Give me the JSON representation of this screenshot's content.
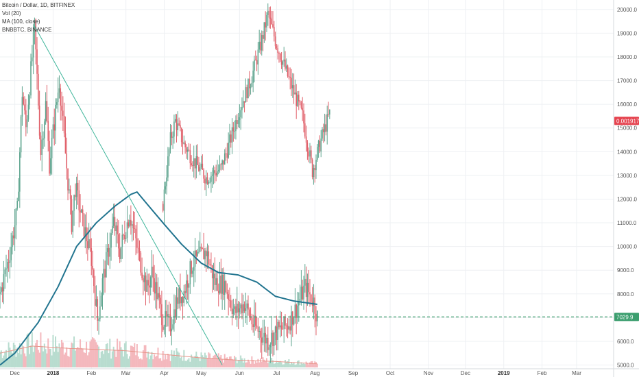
{
  "legend": {
    "main_series": "Bitcoin / Dollar, 1D, BITFINEX",
    "volume": "Vol (20)",
    "ma": "MA (100, close)",
    "overlay": "BNBBTC, BINANCE"
  },
  "price_tags": {
    "overlay_last": "0.0019173",
    "btc_last": "7029.9"
  },
  "colors": {
    "up": "#5fa58f",
    "down": "#e0606a",
    "ma": "#21748f",
    "trendline": "#3eb59a",
    "overlay_tag": "#e5434f",
    "btc_tag": "#3b9e6e",
    "volume_up": "#b8dccf",
    "volume_down": "#f4b8bd",
    "volume_ma": "#e8958a",
    "grid": "#eef0f3"
  },
  "chart_data": {
    "type": "candlestick",
    "title": "Bitcoin / Dollar, 1D, BITFINEX",
    "y_axis": {
      "range": [
        4900,
        20400
      ],
      "ticks": [
        "5000.0",
        "6000.0",
        "7000.0",
        "8000.0",
        "9000.0",
        "10000.0",
        "11000.0",
        "12000.0",
        "13000.0",
        "14000.0",
        "15000.0",
        "16000.0",
        "17000.0",
        "18000.0",
        "19000.0",
        "20000.0"
      ],
      "tick_values": [
        5000,
        6000,
        7000,
        8000,
        9000,
        10000,
        11000,
        12000,
        13000,
        14000,
        15000,
        16000,
        17000,
        18000,
        19000,
        20000
      ]
    },
    "x_axis": {
      "start": "2017-11-19",
      "end": "2019-03-31",
      "ticks": [
        {
          "date": "2017-12-01",
          "label": "Dec",
          "bold": false
        },
        {
          "date": "2018-01-01",
          "label": "2018",
          "bold": true
        },
        {
          "date": "2018-02-01",
          "label": "Feb",
          "bold": false
        },
        {
          "date": "2018-03-01",
          "label": "Mar",
          "bold": false
        },
        {
          "date": "2018-04-01",
          "label": "Apr",
          "bold": false
        },
        {
          "date": "2018-05-01",
          "label": "May",
          "bold": false
        },
        {
          "date": "2018-06-01",
          "label": "Jun",
          "bold": false
        },
        {
          "date": "2018-07-01",
          "label": "Jul",
          "bold": false
        },
        {
          "date": "2018-08-01",
          "label": "Aug",
          "bold": false
        },
        {
          "date": "2018-09-01",
          "label": "Sep",
          "bold": false
        },
        {
          "date": "2018-10-01",
          "label": "Oct",
          "bold": false
        },
        {
          "date": "2018-11-01",
          "label": "Nov",
          "bold": false
        },
        {
          "date": "2018-12-01",
          "label": "Dec",
          "bold": false
        },
        {
          "date": "2019-01-01",
          "label": "2019",
          "bold": true
        },
        {
          "date": "2019-02-01",
          "label": "Feb",
          "bold": false
        },
        {
          "date": "2019-03-01",
          "label": "Mar",
          "bold": false
        }
      ]
    },
    "btc_close_path": [
      [
        "2017-11-19",
        8000
      ],
      [
        "2017-11-26",
        9500
      ],
      [
        "2017-12-03",
        11500
      ],
      [
        "2017-12-07",
        16500
      ],
      [
        "2017-12-10",
        15000
      ],
      [
        "2017-12-17",
        19200
      ],
      [
        "2017-12-22",
        14000
      ],
      [
        "2017-12-26",
        16000
      ],
      [
        "2017-12-29",
        13500
      ],
      [
        "2018-01-06",
        17000
      ],
      [
        "2018-01-10",
        14500
      ],
      [
        "2018-01-16",
        11000
      ],
      [
        "2018-01-19",
        12500
      ],
      [
        "2018-01-25",
        11000
      ],
      [
        "2018-02-01",
        9500
      ],
      [
        "2018-02-06",
        6900
      ],
      [
        "2018-02-10",
        8500
      ],
      [
        "2018-02-19",
        11000
      ],
      [
        "2018-02-24",
        9800
      ],
      [
        "2018-03-04",
        11400
      ],
      [
        "2018-03-12",
        9500
      ],
      [
        "2018-03-18",
        8200
      ],
      [
        "2018-03-22",
        8900
      ],
      [
        "2018-03-31",
        6900
      ],
      [
        "2018-04-06",
        6700
      ],
      [
        "2018-04-12",
        7800
      ],
      [
        "2018-04-17",
        8100
      ],
      [
        "2018-04-24",
        9300
      ],
      [
        "2018-05-05",
        9800
      ],
      [
        "2018-05-12",
        8500
      ],
      [
        "2018-05-20",
        8400
      ],
      [
        "2018-05-28",
        7200
      ],
      [
        "2018-06-05",
        7600
      ],
      [
        "2018-06-12",
        6700
      ],
      [
        "2018-06-24",
        6000
      ],
      [
        "2018-07-01",
        6400
      ],
      [
        "2018-07-10",
        6700
      ],
      [
        "2018-07-17",
        7400
      ],
      [
        "2018-07-24",
        8300
      ],
      [
        "2018-07-31",
        7700
      ],
      [
        "2018-08-03",
        7030
      ]
    ],
    "volume_ma_path": [
      [
        "2017-11-19",
        5500
      ],
      [
        "2017-12-15",
        5800
      ],
      [
        "2018-01-15",
        5700
      ],
      [
        "2018-02-10",
        5650
      ],
      [
        "2018-03-01",
        5600
      ],
      [
        "2018-04-01",
        5450
      ],
      [
        "2018-05-01",
        5300
      ],
      [
        "2018-06-01",
        5200
      ],
      [
        "2018-07-01",
        5150
      ],
      [
        "2018-08-03",
        5050
      ]
    ],
    "ma_100": [
      [
        "2017-11-19",
        5000
      ],
      [
        "2017-12-01",
        5500
      ],
      [
        "2017-12-20",
        6800
      ],
      [
        "2018-01-05",
        8300
      ],
      [
        "2018-01-20",
        10000
      ],
      [
        "2018-02-05",
        11000
      ],
      [
        "2018-02-20",
        11700
      ],
      [
        "2018-03-05",
        12200
      ],
      [
        "2018-03-10",
        12300
      ],
      [
        "2018-03-18",
        11800
      ],
      [
        "2018-03-31",
        11000
      ],
      [
        "2018-04-15",
        10100
      ],
      [
        "2018-05-01",
        9300
      ],
      [
        "2018-05-15",
        8900
      ],
      [
        "2018-05-31",
        8800
      ],
      [
        "2018-06-15",
        8500
      ],
      [
        "2018-06-30",
        7900
      ],
      [
        "2018-07-15",
        7700
      ],
      [
        "2018-08-03",
        7560
      ]
    ],
    "overlay_bnbbtc_path": [
      [
        "2018-03-31",
        11800
      ],
      [
        "2018-04-06",
        14500
      ],
      [
        "2018-04-10",
        15300
      ],
      [
        "2018-04-17",
        14300
      ],
      [
        "2018-04-25",
        13600
      ],
      [
        "2018-05-05",
        12900
      ],
      [
        "2018-05-17",
        13300
      ],
      [
        "2018-05-24",
        14400
      ],
      [
        "2018-06-01",
        15800
      ],
      [
        "2018-06-10",
        17000
      ],
      [
        "2018-06-18",
        18500
      ],
      [
        "2018-06-24",
        19800
      ],
      [
        "2018-06-30",
        18700
      ],
      [
        "2018-07-10",
        17200
      ],
      [
        "2018-07-22",
        15500
      ],
      [
        "2018-07-30",
        13200
      ],
      [
        "2018-08-06",
        14500
      ],
      [
        "2018-08-13",
        15600
      ]
    ],
    "trendline": [
      [
        "2017-12-17",
        19300
      ],
      [
        "2018-05-18",
        5000
      ]
    ],
    "last_price_line": 7029.9,
    "overlay_last_value": "0.0019173"
  }
}
